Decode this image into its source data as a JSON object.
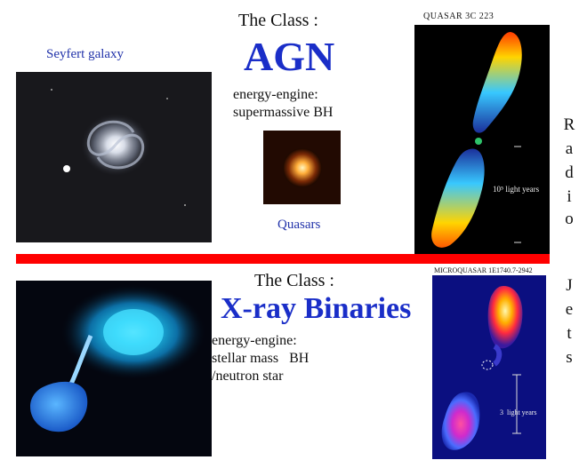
{
  "top": {
    "class_label": "The Class :",
    "class_name": "AGN",
    "engine_label": "energy-engine:",
    "engine_value": "supermassive BH",
    "seyfert_caption": "Seyfert galaxy",
    "quasars_caption": "Quasars",
    "quasar_image_title": "QUASAR 3C 223",
    "quasar_scale": "10⁵ light years"
  },
  "bottom": {
    "class_label": "The Class :",
    "class_name": "X-ray Binaries",
    "engine_label": "energy-engine:",
    "engine_value_1": "stellar mass   BH",
    "engine_value_2": "/neutron star",
    "microquasar_image_title": "MICROQUASAR 1E1740.7-2942",
    "microquasar_scale": "3  light years"
  },
  "side_letters": [
    "R",
    "a",
    "d",
    "i",
    "o",
    "J",
    "e",
    "t",
    "s"
  ],
  "colors": {
    "divider": "#ff0000",
    "title_blue": "#1a2ec8"
  }
}
